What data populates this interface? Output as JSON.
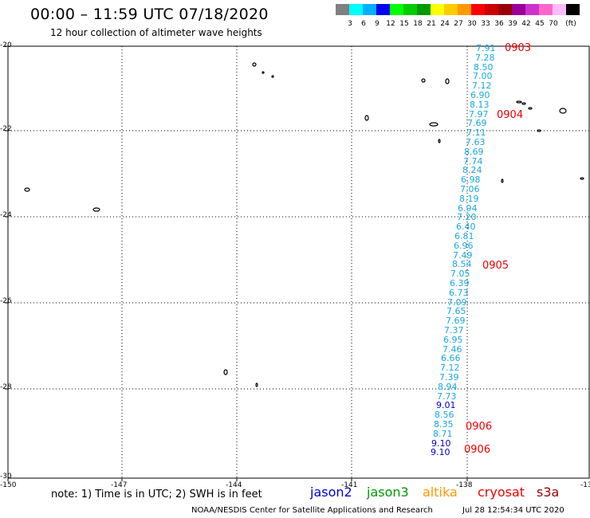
{
  "header": {
    "title": "00:00 – 11:59 UTC 07/18/2020",
    "subtitle": "12 hour collection of altimeter wave heights"
  },
  "colorbar": {
    "colors": [
      "#808080",
      "#00ffff",
      "#00b0ff",
      "#0000ee",
      "#00ff00",
      "#00cc00",
      "#009900",
      "#ffff00",
      "#ffcc00",
      "#ff9900",
      "#ff0000",
      "#cc0000",
      "#990000",
      "#990099",
      "#cc33cc",
      "#ff66cc",
      "#ffbbff",
      "#000000"
    ],
    "labels": [
      "3",
      "6",
      "9",
      "12",
      "15",
      "18",
      "21",
      "24",
      "27",
      "30",
      "33",
      "36",
      "39",
      "42",
      "45",
      "70"
    ],
    "unit": "(ft)"
  },
  "axes": {
    "lat_labels": [
      "-20",
      "-22",
      "-24",
      "-26",
      "-28",
      "-30"
    ],
    "lon_labels": [
      "-150",
      "-147",
      "-144",
      "-141",
      "-138",
      "-13"
    ]
  },
  "passes": [
    {
      "id": "0903",
      "color": "#ee0000"
    },
    {
      "id": "0904",
      "color": "#ee0000"
    },
    {
      "id": "0905",
      "color": "#ee0000"
    },
    {
      "id": "0906",
      "color": "#ee0000"
    },
    {
      "id": "0906",
      "color": "#ee0000"
    }
  ],
  "swh_values": [
    "7.91",
    "7.28",
    "8.50",
    "7.00",
    "7.12",
    "6.90",
    "8.13",
    "7.97",
    "7.69",
    "7.11",
    "7.63",
    "8.69",
    "7.74",
    "8.24",
    "6.98",
    "7.06",
    "8.19",
    "6.94",
    "7.20",
    "6.40",
    "6.81",
    "6.96",
    "7.49",
    "8.54",
    "7.05",
    "6.39",
    "6.73",
    "7.09",
    "7.65",
    "7.69",
    "7.37",
    "6.95",
    "7.46",
    "6.66",
    "7.12",
    "7.39",
    "8.94",
    "7.73",
    "9.01",
    "8.56",
    "8.35",
    "8.71",
    "9.10",
    "9.10"
  ],
  "note": "note: 1) Time is in UTC; 2) SWH is in feet",
  "legend": [
    {
      "name": "jason2",
      "color": "#0000cc"
    },
    {
      "name": "jason3",
      "color": "#009900"
    },
    {
      "name": "altika",
      "color": "#ff9900"
    },
    {
      "name": "cryosat",
      "color": "#ee0000"
    },
    {
      "name": "s3a",
      "color": "#990000"
    }
  ],
  "footer": {
    "credit": "NOAA/NESDIS Center for Satellite Applications and Research",
    "timestamp": "Jul 28 12:54:34 UTC 2020"
  }
}
